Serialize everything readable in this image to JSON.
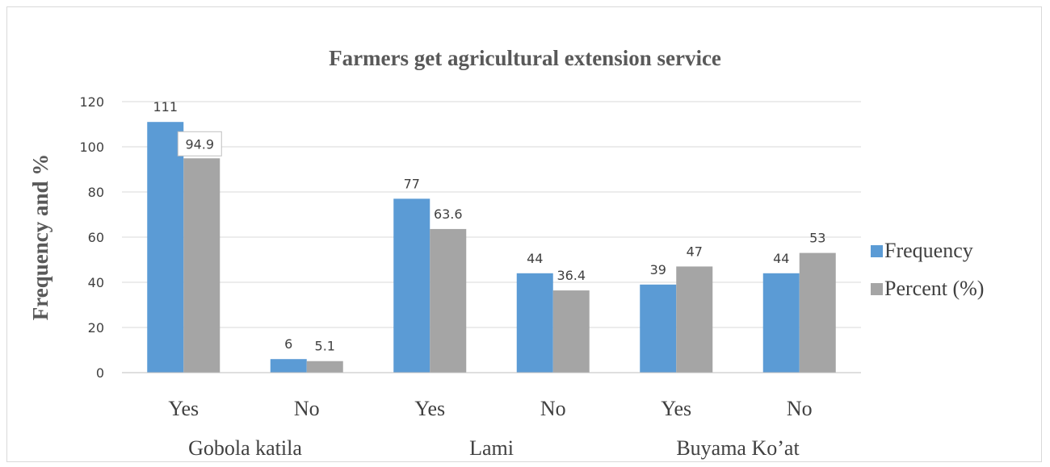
{
  "chart_data": {
    "type": "bar",
    "title": "Farmers get agricultural extension service",
    "ylabel": "Frequency and  %",
    "xlabel": "",
    "ylim": [
      0,
      120
    ],
    "yticks": [
      0,
      20,
      40,
      60,
      80,
      100,
      120
    ],
    "categories": [
      "Yes",
      "No",
      "Yes",
      "No",
      "Yes",
      "No"
    ],
    "groups": [
      {
        "label": "Gobola katila",
        "span": [
          0,
          1
        ]
      },
      {
        "label": "Lami",
        "span": [
          2,
          3
        ]
      },
      {
        "label": "Buyama Ko’at",
        "span": [
          4,
          5
        ]
      }
    ],
    "series": [
      {
        "name": "Frequency",
        "color": "#5b9bd5",
        "values": [
          111,
          6,
          77,
          44,
          39,
          44
        ]
      },
      {
        "name": "Percent (%)",
        "color": "#a5a5a5",
        "values": [
          94.9,
          5.1,
          63.6,
          36.4,
          47,
          53
        ]
      }
    ],
    "grid": true,
    "legend_position": "right"
  }
}
